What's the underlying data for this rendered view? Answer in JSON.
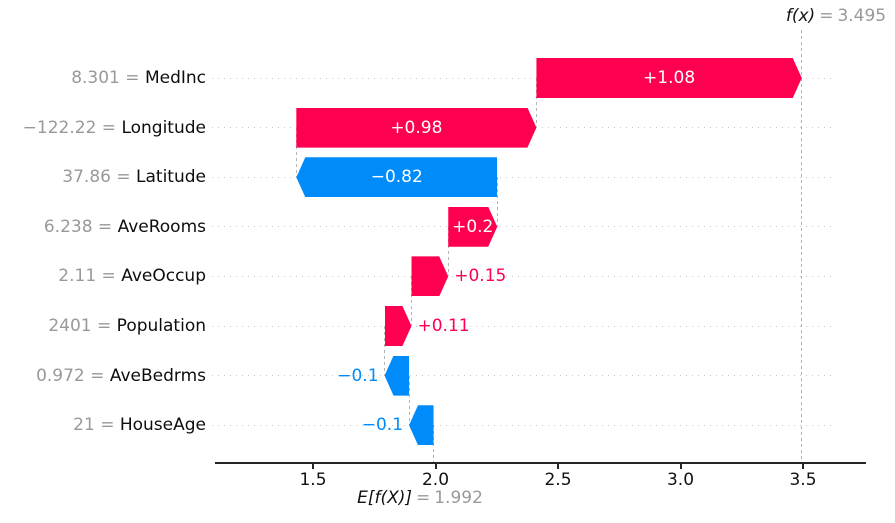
{
  "figure": {
    "fx_annotation": {
      "function": "f(x)",
      "separator": "=",
      "value": "3.495"
    },
    "ef_annotation": {
      "function": "E[f(X)]",
      "separator": "=",
      "value": "1.992"
    }
  },
  "chart_data": {
    "type": "bar",
    "subtype": "shap-waterfall",
    "title": "",
    "xlabel": "",
    "ylabel": "",
    "base_value": 1.992,
    "fx_value": 3.495,
    "label_separator": " = ",
    "x_ticks": [
      "1.5",
      "2.0",
      "2.5",
      "3.0",
      "3.5"
    ],
    "xlim": [
      1.1,
      3.76
    ],
    "grid": "horizontal-dotted",
    "colors": {
      "positive": "#ff0051",
      "negative": "#008bfb",
      "muted_text": "#999999",
      "gridline": "#c9c9c9",
      "connector": "#b3b3b3"
    },
    "rows": [
      {
        "feature": "MedInc",
        "feature_value": "8.301",
        "contribution": "+1.08",
        "lo": 2.412,
        "hi": 3.495,
        "sign": "positive",
        "label_position": "inside"
      },
      {
        "feature": "Longitude",
        "feature_value": "−122.22",
        "contribution": "+0.98",
        "lo": 1.432,
        "hi": 2.412,
        "sign": "positive",
        "label_position": "inside"
      },
      {
        "feature": "Latitude",
        "feature_value": "37.86",
        "contribution": "−0.82",
        "lo": 1.432,
        "hi": 2.252,
        "sign": "negative",
        "label_position": "inside"
      },
      {
        "feature": "AveRooms",
        "feature_value": "6.238",
        "contribution": "+0.2",
        "lo": 2.052,
        "hi": 2.252,
        "sign": "positive",
        "label_position": "inside"
      },
      {
        "feature": "AveOccup",
        "feature_value": "2.11",
        "contribution": "+0.15",
        "lo": 1.902,
        "hi": 2.052,
        "sign": "positive",
        "label_position": "outside"
      },
      {
        "feature": "Population",
        "feature_value": "2401",
        "contribution": "+0.11",
        "lo": 1.792,
        "hi": 1.902,
        "sign": "positive",
        "label_position": "outside"
      },
      {
        "feature": "AveBedrms",
        "feature_value": "0.972",
        "contribution": "−0.1",
        "lo": 1.792,
        "hi": 1.892,
        "sign": "negative",
        "label_position": "outside"
      },
      {
        "feature": "HouseAge",
        "feature_value": "21",
        "contribution": "−0.1",
        "lo": 1.892,
        "hi": 1.992,
        "sign": "negative",
        "label_position": "outside"
      }
    ]
  }
}
